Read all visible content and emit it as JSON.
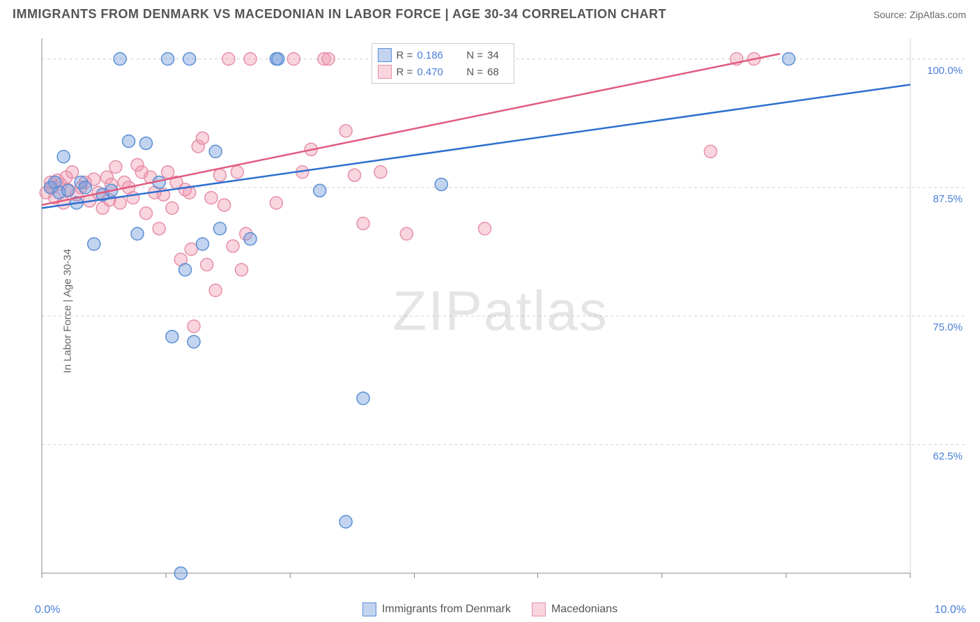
{
  "title": "IMMIGRANTS FROM DENMARK VS MACEDONIAN IN LABOR FORCE | AGE 30-34 CORRELATION CHART",
  "source": "Source: ZipAtlas.com",
  "ylabel": "In Labor Force | Age 30-34",
  "watermark": "ZIPatlas",
  "chart": {
    "type": "scatter",
    "xlim": [
      0.0,
      10.0
    ],
    "ylim": [
      50.0,
      102.0
    ],
    "x_tick_labels": [
      "0.0%",
      "10.0%"
    ],
    "y_ticks": [
      62.5,
      75.0,
      87.5,
      100.0
    ],
    "y_tick_labels": [
      "62.5%",
      "75.0%",
      "87.5%",
      "100.0%"
    ],
    "x_minor_ticks": [
      0,
      1.43,
      2.86,
      4.29,
      5.71,
      7.14,
      8.57,
      10.0
    ],
    "background_color": "#ffffff",
    "grid_color": "#d0d0d0",
    "axis_color": "#888888",
    "tick_label_color": "#4a7fd8",
    "series": [
      {
        "name": "Immigrants from Denmark",
        "marker_fill": "rgba(120,160,220,0.45)",
        "marker_stroke": "#5b8fd6",
        "line_color": "#2e6fd0",
        "R": "0.186",
        "N": "34",
        "trend_line": {
          "x1": 0.0,
          "y1": 85.5,
          "x2": 10.0,
          "y2": 97.5
        },
        "points": [
          [
            0.1,
            87.5
          ],
          [
            0.15,
            88.0
          ],
          [
            0.2,
            87.0
          ],
          [
            0.25,
            90.5
          ],
          [
            0.3,
            87.2
          ],
          [
            0.4,
            86.0
          ],
          [
            0.45,
            88.0
          ],
          [
            0.5,
            87.5
          ],
          [
            0.6,
            82.0
          ],
          [
            0.7,
            86.8
          ],
          [
            0.8,
            87.2
          ],
          [
            0.9,
            100.0
          ],
          [
            1.0,
            92.0
          ],
          [
            1.1,
            83.0
          ],
          [
            1.2,
            91.8
          ],
          [
            1.35,
            88.0
          ],
          [
            1.45,
            100.0
          ],
          [
            1.5,
            73.0
          ],
          [
            1.6,
            50.0
          ],
          [
            1.65,
            79.5
          ],
          [
            1.7,
            100.0
          ],
          [
            1.75,
            72.5
          ],
          [
            1.85,
            82.0
          ],
          [
            2.0,
            91.0
          ],
          [
            2.05,
            83.5
          ],
          [
            2.4,
            82.5
          ],
          [
            2.7,
            100.0
          ],
          [
            2.72,
            100.0
          ],
          [
            3.2,
            87.2
          ],
          [
            3.7,
            67.0
          ],
          [
            3.5,
            55.0
          ],
          [
            4.6,
            87.8
          ],
          [
            4.7,
            100.0
          ],
          [
            8.6,
            100.0
          ]
        ]
      },
      {
        "name": "Macedonians",
        "marker_fill": "rgba(240,150,175,0.40)",
        "marker_stroke": "#e68fa8",
        "line_color": "#e05a7f",
        "R": "0.470",
        "N": "68",
        "trend_line": {
          "x1": 0.0,
          "y1": 85.8,
          "x2": 8.5,
          "y2": 100.5
        },
        "points": [
          [
            0.05,
            87.0
          ],
          [
            0.1,
            88.0
          ],
          [
            0.12,
            87.5
          ],
          [
            0.15,
            86.5
          ],
          [
            0.18,
            88.2
          ],
          [
            0.22,
            87.8
          ],
          [
            0.25,
            86.0
          ],
          [
            0.28,
            88.5
          ],
          [
            0.3,
            87.3
          ],
          [
            0.35,
            89.0
          ],
          [
            0.4,
            86.8
          ],
          [
            0.45,
            87.5
          ],
          [
            0.5,
            88.0
          ],
          [
            0.55,
            86.2
          ],
          [
            0.6,
            88.3
          ],
          [
            0.65,
            87.0
          ],
          [
            0.7,
            85.5
          ],
          [
            0.75,
            88.5
          ],
          [
            0.78,
            86.3
          ],
          [
            0.8,
            87.8
          ],
          [
            0.85,
            89.5
          ],
          [
            0.9,
            86.0
          ],
          [
            0.95,
            88.0
          ],
          [
            1.0,
            87.5
          ],
          [
            1.05,
            86.5
          ],
          [
            1.1,
            89.7
          ],
          [
            1.15,
            89.0
          ],
          [
            1.2,
            85.0
          ],
          [
            1.25,
            88.5
          ],
          [
            1.3,
            87.0
          ],
          [
            1.35,
            83.5
          ],
          [
            1.4,
            86.8
          ],
          [
            1.45,
            89.0
          ],
          [
            1.5,
            85.5
          ],
          [
            1.55,
            88.0
          ],
          [
            1.6,
            80.5
          ],
          [
            1.65,
            87.3
          ],
          [
            1.7,
            87.0
          ],
          [
            1.72,
            81.5
          ],
          [
            1.75,
            74.0
          ],
          [
            1.8,
            91.5
          ],
          [
            1.85,
            92.3
          ],
          [
            1.9,
            80.0
          ],
          [
            1.95,
            86.5
          ],
          [
            2.0,
            77.5
          ],
          [
            2.05,
            88.7
          ],
          [
            2.1,
            85.8
          ],
          [
            2.15,
            100.0
          ],
          [
            2.2,
            81.8
          ],
          [
            2.25,
            89.0
          ],
          [
            2.3,
            79.5
          ],
          [
            2.35,
            83.0
          ],
          [
            2.4,
            100.0
          ],
          [
            2.7,
            86.0
          ],
          [
            2.9,
            100.0
          ],
          [
            3.0,
            89.0
          ],
          [
            3.1,
            91.2
          ],
          [
            3.25,
            100.0
          ],
          [
            3.3,
            100.0
          ],
          [
            3.5,
            93.0
          ],
          [
            3.6,
            88.7
          ],
          [
            3.7,
            84.0
          ],
          [
            3.9,
            89.0
          ],
          [
            4.2,
            83.0
          ],
          [
            5.1,
            83.5
          ],
          [
            7.7,
            91.0
          ],
          [
            8.0,
            100.0
          ],
          [
            8.2,
            100.0
          ]
        ]
      }
    ]
  },
  "legend_top": {
    "R_label": "R =",
    "N_label": "N ="
  },
  "legend_bottom": {
    "series1": "Immigrants from Denmark",
    "series2": "Macedonians"
  }
}
